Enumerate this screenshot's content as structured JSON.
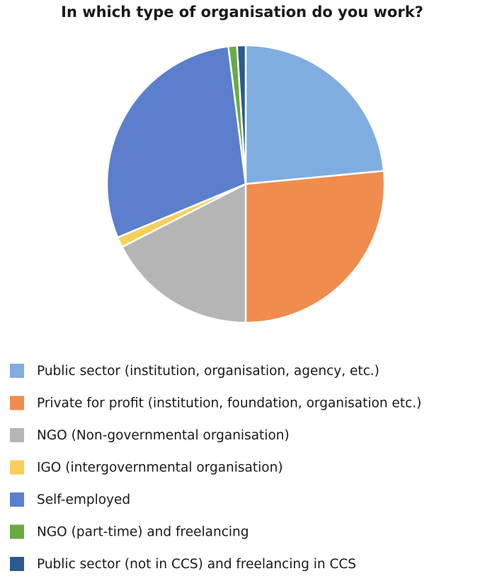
{
  "chart_data": {
    "type": "pie",
    "title": "In which type of organisation do you work?",
    "categories": [
      "Public sector (institution, organisation, agency, etc.)",
      "Private for profit (institution, foundation, organisation etc.)",
      "NGO (Non-governmental organisation)",
      "IGO (intergovernmental organisation)",
      "Self-employed",
      "NGO (part-time) and freelancing",
      "Public sector (not in CCS) and freelancing in CCS"
    ],
    "values": [
      23.5,
      26.5,
      17.5,
      1.2,
      29.3,
      1,
      1
    ],
    "colors": [
      "#7fade0",
      "#ef8c4e",
      "#b5b5b5",
      "#f7cf5a",
      "#5b7fcc",
      "#6aaa45",
      "#2a5b8c"
    ],
    "legend": "bottom"
  }
}
